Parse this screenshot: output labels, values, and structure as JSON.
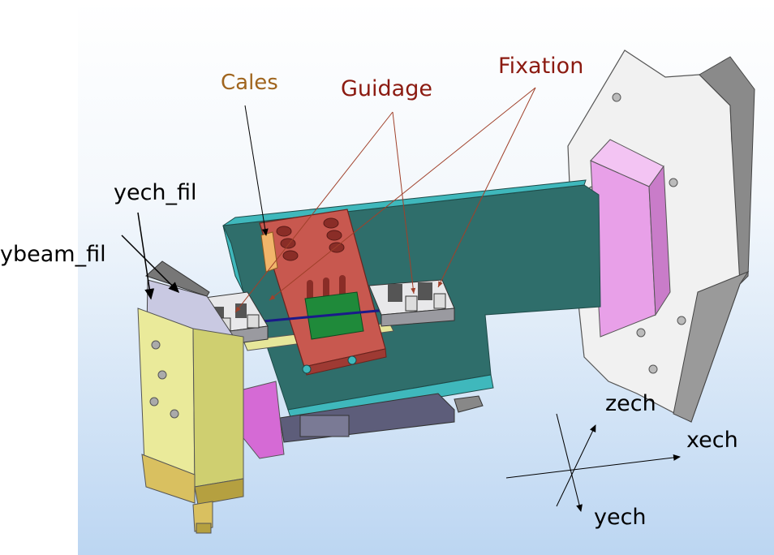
{
  "labels": {
    "cales": "Cales",
    "guidage": "Guidage",
    "fixation": "Fixation",
    "yech_fil": "yech_fil",
    "ybeam_fil": "ybeam_fil",
    "zech": "zech",
    "xech": "xech",
    "yech": "yech"
  },
  "colors": {
    "cales_label": "#a0651e",
    "guidage_label": "#8b1a10",
    "fixation_label": "#8b1a10",
    "leader_lines": "#a0402a",
    "plate": "#2f6e6b",
    "plate_edge": "#3fb8bc",
    "guide_plate": "#c8584f",
    "green_chip": "#1f8a3a",
    "pink_block": "#e8a0e8",
    "yellow_block": "#e6e69a",
    "background_top": "#ffffff",
    "background_bottom": "#bcd6f2"
  }
}
